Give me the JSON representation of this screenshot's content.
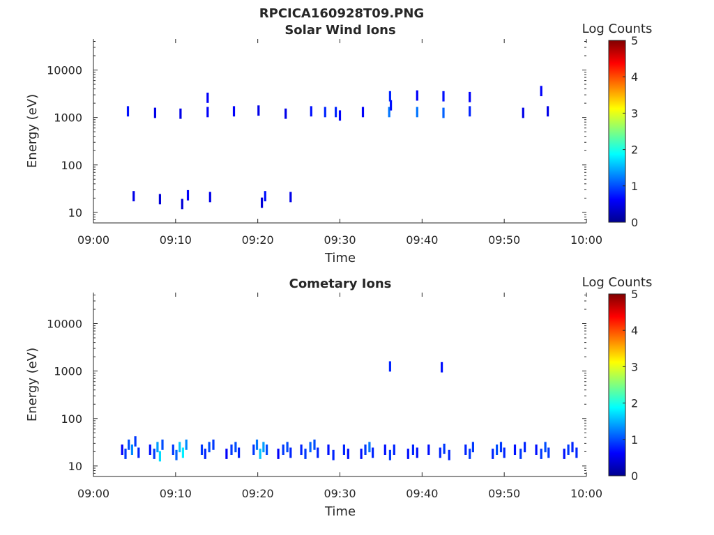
{
  "figure": {
    "title": "RPCICA160928T09.PNG"
  },
  "chart_data": [
    {
      "type": "heatmap",
      "title": "Solar Wind Ions",
      "xlabel": "Time",
      "ylabel": "Energy (eV)",
      "x_ticks": [
        "09:00",
        "09:10",
        "09:20",
        "09:30",
        "09:40",
        "09:50",
        "10:00"
      ],
      "x_range_minutes": [
        0,
        60
      ],
      "y_scale": "log",
      "y_ticks": [
        "10",
        "100",
        "1000",
        "10000"
      ],
      "y_tick_values": [
        10,
        100,
        1000,
        10000
      ],
      "y_range": [
        6,
        45000
      ],
      "colorbar": {
        "label": "Log Counts",
        "ticks": [
          "0",
          "1",
          "2",
          "3",
          "4",
          "5"
        ],
        "range": [
          0,
          5
        ]
      },
      "cells": [
        [
          4.2,
          1350,
          0.7
        ],
        [
          4.9,
          22,
          0.5
        ],
        [
          7.5,
          1250,
          0.5
        ],
        [
          8.1,
          19,
          0.4
        ],
        [
          10.6,
          1200,
          0.5
        ],
        [
          10.8,
          15,
          0.4
        ],
        [
          11.5,
          23,
          0.6
        ],
        [
          13.9,
          1300,
          0.6
        ],
        [
          13.9,
          2600,
          0.6
        ],
        [
          14.2,
          21,
          0.5
        ],
        [
          17.1,
          1350,
          0.6
        ],
        [
          20.1,
          1400,
          0.5
        ],
        [
          20.5,
          16,
          0.4
        ],
        [
          20.9,
          22,
          0.7
        ],
        [
          23.4,
          1200,
          0.5
        ],
        [
          24.0,
          21,
          0.5
        ],
        [
          26.5,
          1350,
          0.7
        ],
        [
          28.2,
          1300,
          0.8
        ],
        [
          29.5,
          1300,
          0.8
        ],
        [
          30.0,
          1100,
          0.6
        ],
        [
          32.8,
          1300,
          0.6
        ],
        [
          36.0,
          1300,
          1.2
        ],
        [
          36.1,
          2800,
          0.8
        ],
        [
          36.2,
          1800,
          0.7
        ],
        [
          39.4,
          1300,
          1.2
        ],
        [
          39.4,
          2900,
          0.6
        ],
        [
          42.6,
          1250,
          1.1
        ],
        [
          42.6,
          2800,
          0.7
        ],
        [
          45.8,
          1350,
          0.8
        ],
        [
          45.8,
          2700,
          0.6
        ],
        [
          52.3,
          1250,
          0.5
        ],
        [
          54.5,
          3600,
          0.6
        ],
        [
          55.3,
          1350,
          0.5
        ]
      ]
    },
    {
      "type": "heatmap",
      "title": "Cometary Ions",
      "xlabel": "Time",
      "ylabel": "Energy (eV)",
      "x_ticks": [
        "09:00",
        "09:10",
        "09:20",
        "09:30",
        "09:40",
        "09:50",
        "10:00"
      ],
      "x_range_minutes": [
        0,
        60
      ],
      "y_scale": "log",
      "y_ticks": [
        "10",
        "100",
        "1000",
        "10000"
      ],
      "y_tick_values": [
        10,
        100,
        1000,
        10000
      ],
      "y_range": [
        6,
        45000
      ],
      "colorbar": {
        "label": "Log Counts",
        "ticks": [
          "0",
          "1",
          "2",
          "3",
          "4",
          "5"
        ],
        "range": [
          0,
          5
        ]
      },
      "cells": [
        [
          3.5,
          22,
          0.6
        ],
        [
          3.9,
          18,
          0.9
        ],
        [
          4.3,
          28,
          1.0
        ],
        [
          4.7,
          22,
          1.3
        ],
        [
          5.1,
          33,
          0.9
        ],
        [
          5.5,
          19,
          0.8
        ],
        [
          6.9,
          22,
          0.7
        ],
        [
          7.4,
          18,
          0.9
        ],
        [
          7.8,
          25,
          1.4
        ],
        [
          8.1,
          16,
          1.7
        ],
        [
          8.4,
          28,
          1.0
        ],
        [
          9.7,
          22,
          0.9
        ],
        [
          10.1,
          17,
          1.1
        ],
        [
          10.5,
          25,
          1.6
        ],
        [
          10.9,
          19,
          1.8
        ],
        [
          11.3,
          28,
          1.3
        ],
        [
          13.2,
          22,
          0.9
        ],
        [
          13.6,
          18,
          0.8
        ],
        [
          14.1,
          25,
          1.0
        ],
        [
          14.6,
          28,
          0.9
        ],
        [
          16.2,
          18,
          0.6
        ],
        [
          16.8,
          22,
          0.9
        ],
        [
          17.3,
          25,
          1.0
        ],
        [
          17.7,
          19,
          0.8
        ],
        [
          19.5,
          22,
          0.9
        ],
        [
          19.9,
          28,
          1.2
        ],
        [
          20.3,
          18,
          1.6
        ],
        [
          20.7,
          25,
          1.4
        ],
        [
          21.1,
          22,
          1.0
        ],
        [
          22.5,
          18,
          0.6
        ],
        [
          23.1,
          22,
          0.9
        ],
        [
          23.6,
          25,
          1.0
        ],
        [
          24.0,
          19,
          0.8
        ],
        [
          25.3,
          22,
          0.8
        ],
        [
          25.8,
          18,
          0.9
        ],
        [
          26.4,
          25,
          1.1
        ],
        [
          26.9,
          28,
          1.0
        ],
        [
          27.3,
          19,
          0.8
        ],
        [
          28.6,
          22,
          0.7
        ],
        [
          29.2,
          17,
          0.8
        ],
        [
          30.5,
          22,
          0.8
        ],
        [
          31.0,
          18,
          0.7
        ],
        [
          32.6,
          18,
          0.7
        ],
        [
          33.1,
          22,
          0.9
        ],
        [
          33.6,
          25,
          1.2
        ],
        [
          34.0,
          19,
          0.8
        ],
        [
          35.5,
          22,
          0.7
        ],
        [
          36.1,
          17,
          0.9
        ],
        [
          36.1,
          1250,
          0.8
        ],
        [
          36.6,
          22,
          0.8
        ],
        [
          38.3,
          18,
          0.7
        ],
        [
          38.9,
          22,
          0.8
        ],
        [
          39.4,
          19,
          0.7
        ],
        [
          40.8,
          22,
          0.7
        ],
        [
          42.2,
          19,
          0.8
        ],
        [
          42.4,
          1200,
          0.7
        ],
        [
          42.7,
          23,
          0.9
        ],
        [
          43.3,
          17,
          0.8
        ],
        [
          45.3,
          22,
          0.8
        ],
        [
          45.8,
          18,
          0.9
        ],
        [
          46.2,
          25,
          0.9
        ],
        [
          48.6,
          18,
          0.8
        ],
        [
          49.1,
          22,
          1.0
        ],
        [
          49.6,
          25,
          0.9
        ],
        [
          50.0,
          19,
          0.8
        ],
        [
          51.3,
          22,
          0.7
        ],
        [
          52.0,
          18,
          0.9
        ],
        [
          52.5,
          25,
          0.8
        ],
        [
          53.9,
          22,
          0.7
        ],
        [
          54.5,
          18,
          0.9
        ],
        [
          55.0,
          25,
          1.0
        ],
        [
          55.4,
          19,
          0.9
        ],
        [
          57.3,
          18,
          0.7
        ],
        [
          57.8,
          22,
          0.9
        ],
        [
          58.3,
          25,
          0.8
        ],
        [
          58.8,
          19,
          0.8
        ]
      ]
    }
  ]
}
